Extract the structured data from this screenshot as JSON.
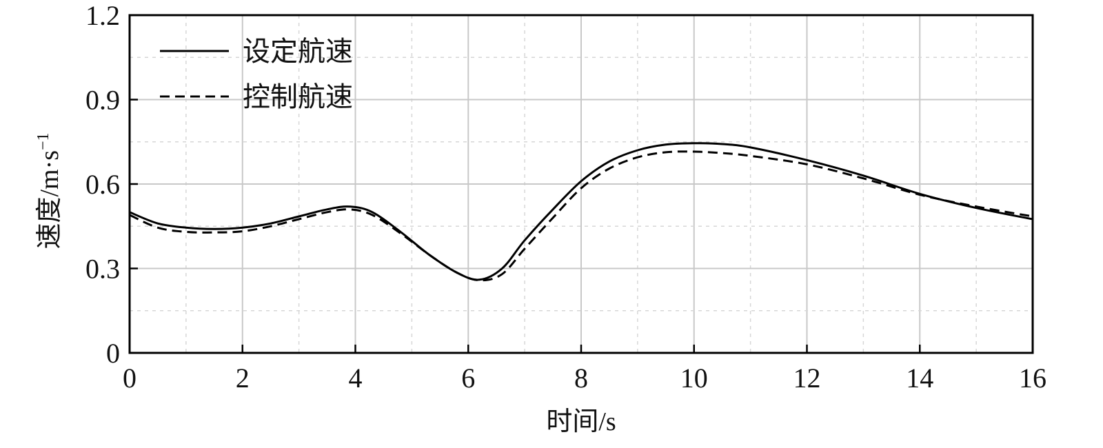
{
  "chart_data": {
    "type": "line",
    "title": "",
    "xlabel": "时间/s",
    "ylabel": {
      "main": "速度/m·s",
      "sup": "−1"
    },
    "xlim": [
      0,
      16
    ],
    "ylim": [
      0,
      1.2
    ],
    "xticks": [
      0,
      2,
      4,
      6,
      8,
      10,
      12,
      14,
      16
    ],
    "xtick_labels": [
      "0",
      "2",
      "4",
      "6",
      "8",
      "10",
      "12",
      "14",
      "16"
    ],
    "yticks": [
      0,
      0.3,
      0.6,
      0.9,
      1.2
    ],
    "ytick_labels": [
      "0",
      "0.3",
      "0.6",
      "0.9",
      "1.2"
    ],
    "grid": "on",
    "legend_position": "top-left",
    "series": [
      {
        "name": "设定航速",
        "style": "solid",
        "color": "#000000",
        "x": [
          0,
          0.5,
          1,
          1.5,
          2,
          2.5,
          3,
          3.5,
          3.9,
          4.3,
          4.8,
          5.3,
          5.8,
          6.2,
          6.6,
          7.0,
          7.5,
          8.0,
          8.5,
          9.0,
          9.5,
          10.0,
          10.5,
          11.0,
          12.0,
          13.0,
          14.0,
          15.0,
          16.0
        ],
        "y": [
          0.5,
          0.46,
          0.445,
          0.44,
          0.445,
          0.46,
          0.485,
          0.51,
          0.52,
          0.5,
          0.43,
          0.35,
          0.285,
          0.26,
          0.3,
          0.4,
          0.51,
          0.61,
          0.68,
          0.72,
          0.74,
          0.745,
          0.742,
          0.73,
          0.685,
          0.63,
          0.565,
          0.515,
          0.475
        ]
      },
      {
        "name": "控制航速",
        "style": "dashed",
        "color": "#000000",
        "x": [
          0,
          0.5,
          1,
          1.5,
          2,
          2.5,
          3,
          3.5,
          3.9,
          4.3,
          4.8,
          5.3,
          5.8,
          6.2,
          6.6,
          7.0,
          7.5,
          8.0,
          8.5,
          9.0,
          9.5,
          10.0,
          10.5,
          11.0,
          12.0,
          13.0,
          14.0,
          15.0,
          16.0
        ],
        "y": [
          0.49,
          0.445,
          0.43,
          0.428,
          0.432,
          0.45,
          0.475,
          0.5,
          0.51,
          0.49,
          0.425,
          0.35,
          0.285,
          0.258,
          0.28,
          0.37,
          0.48,
          0.585,
          0.655,
          0.695,
          0.713,
          0.715,
          0.71,
          0.7,
          0.67,
          0.62,
          0.562,
          0.52,
          0.485
        ]
      }
    ]
  }
}
